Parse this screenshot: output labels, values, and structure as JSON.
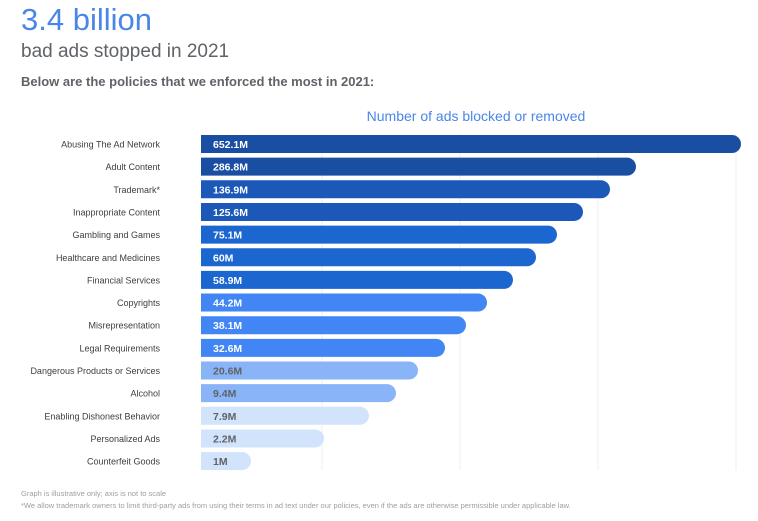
{
  "header": {
    "headline": "3.4 billion",
    "subheadline": "bad ads stopped in 2021",
    "intro": "Below are the policies that we enforced the most in 2021:"
  },
  "chart_data": {
    "type": "bar",
    "orientation": "horizontal",
    "title": "Number of ads blocked or removed",
    "categories": [
      "Abusing The Ad Network",
      "Adult Content",
      "Trademark*",
      "Inappropriate Content",
      "Gambling and Games",
      "Healthcare and Medicines",
      "Financial Services",
      "Copyrights",
      "Misrepresentation",
      "Legal Requirements",
      "Dangerous Products or Services",
      "Alcohol",
      "Enabling Dishonest Behavior",
      "Personalized Ads",
      "Counterfeit Goods"
    ],
    "values": [
      652.1,
      286.8,
      136.9,
      125.6,
      75.1,
      60,
      58.9,
      44.2,
      38.1,
      32.6,
      20.6,
      9.4,
      7.9,
      2.2,
      1
    ],
    "unit": "M",
    "data_labels": [
      "652.1M",
      "286.8M",
      "136.9M",
      "125.6M",
      "75.1M",
      "60M",
      "58.9M",
      "44.2M",
      "38.1M",
      "32.6M",
      "20.6M",
      "9.4M",
      "7.9M",
      "2.2M",
      "1M"
    ],
    "bar_colors": [
      "#1a4ea3",
      "#1a4ea3",
      "#1b58b8",
      "#1b58b8",
      "#1c66d0",
      "#1c66d0",
      "#1c66d0",
      "#4285f4",
      "#4285f4",
      "#4285f4",
      "#8ab4f8",
      "#8ab4f8",
      "#d2e3fc",
      "#d2e3fc",
      "#d2e3fc"
    ],
    "grid": true,
    "axis_scale": "not to scale"
  },
  "footnotes": {
    "scale_note": "Graph is illustrative only; axis is not to scale",
    "trademark_note": "*We allow trademark owners to limit third-party ads from using their terms in ad text under our policies, even if the ads are otherwise permissible under applicable law."
  }
}
